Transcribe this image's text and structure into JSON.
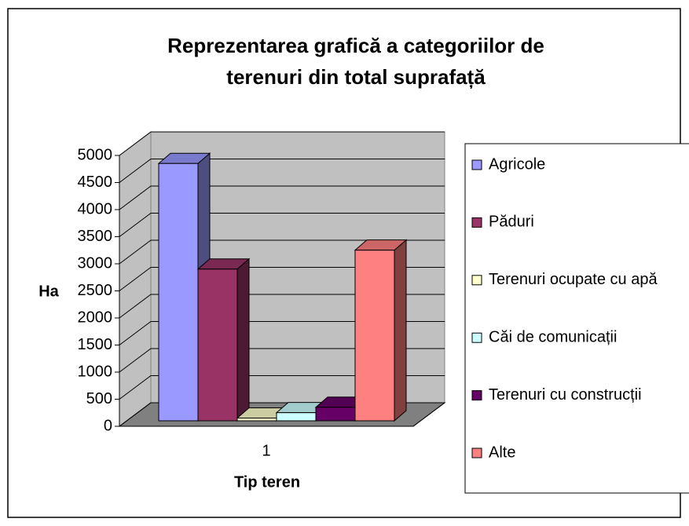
{
  "chart_data": {
    "type": "bar3d",
    "title": "Reprezentarea grafică a categoriilor de terenuri din total suprafață",
    "x_label": "Tip teren",
    "y_label": "Ha",
    "categories": [
      "1"
    ],
    "series": [
      {
        "name": "Agricole",
        "color": "#9999ff",
        "values": [
          4750
        ]
      },
      {
        "name": "Păduri",
        "color": "#993366",
        "values": [
          2800
        ]
      },
      {
        "name": "Terenuri ocupate cu apă",
        "color": "#ffffcc",
        "values": [
          50
        ]
      },
      {
        "name": "Căi de comunicații",
        "color": "#ccffff",
        "values": [
          150
        ]
      },
      {
        "name": "Terenuri cu construcții",
        "color": "#660066",
        "values": [
          250
        ]
      },
      {
        "name": "Alte",
        "color": "#ff8080",
        "values": [
          3150
        ]
      }
    ],
    "ylim": [
      0,
      5000
    ],
    "yticks": [
      0,
      500,
      1000,
      1500,
      2000,
      2500,
      3000,
      3500,
      4000,
      4500,
      5000
    ],
    "grid": true,
    "legend": "right"
  }
}
